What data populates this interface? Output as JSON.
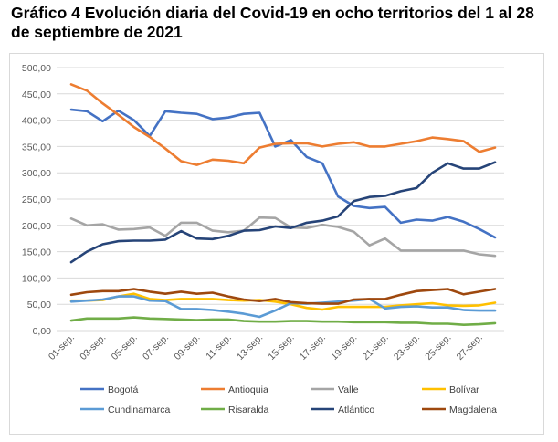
{
  "title": "Gráfico 4 Evolución diaria del Covid-19 en ocho territorios del 1 al 28 de septiembre de 2021",
  "chart_data": {
    "type": "line",
    "title": "Gráfico 4 Evolución diaria del Covid-19 en ocho territorios del 1 al 28 de septiembre de 2021",
    "xlabel": "",
    "ylabel": "",
    "ylim": [
      0,
      500
    ],
    "y_ticks": [
      "0,00",
      "50,00",
      "100,00",
      "150,00",
      "200,00",
      "250,00",
      "300,00",
      "350,00",
      "400,00",
      "450,00",
      "500,00"
    ],
    "x": [
      "01-sep.",
      "02-sep.",
      "03-sep.",
      "04-sep.",
      "05-sep.",
      "06-sep.",
      "07-sep.",
      "08-sep.",
      "09-sep.",
      "10-sep.",
      "11-sep.",
      "12-sep.",
      "13-sep.",
      "14-sep.",
      "15-sep.",
      "16-sep.",
      "17-sep.",
      "18-sep.",
      "19-sep.",
      "20-sep.",
      "21-sep.",
      "22-sep.",
      "23-sep.",
      "24-sep.",
      "25-sep.",
      "26-sep.",
      "27-sep.",
      "28-sep."
    ],
    "x_tick_labels": [
      "01-sep.",
      "03-sep.",
      "05-sep.",
      "07-sep.",
      "09-sep.",
      "11-sep.",
      "13-sep.",
      "15-sep.",
      "17-sep.",
      "19-sep.",
      "21-sep.",
      "23-sep.",
      "25-sep.",
      "27-sep."
    ],
    "grid": true,
    "legend_position": "bottom",
    "series": [
      {
        "name": "Bogotá",
        "color": "#4472c4",
        "values": [
          420,
          417,
          398,
          418,
          400,
          370,
          417,
          414,
          412,
          402,
          405,
          412,
          414,
          350,
          362,
          330,
          318,
          255,
          237,
          233,
          235,
          205,
          211,
          209,
          216,
          207,
          193,
          177
        ]
      },
      {
        "name": "Antioquia",
        "color": "#ed7d31",
        "values": [
          468,
          456,
          432,
          410,
          387,
          368,
          346,
          322,
          315,
          325,
          323,
          318,
          348,
          355,
          356,
          356,
          350,
          355,
          358,
          350,
          350,
          355,
          360,
          367,
          364,
          360,
          340,
          348
        ]
      },
      {
        "name": "Valle",
        "color": "#a5a5a5",
        "values": [
          213,
          200,
          202,
          192,
          193,
          196,
          180,
          205,
          205,
          190,
          187,
          190,
          215,
          214,
          196,
          195,
          201,
          197,
          188,
          162,
          175,
          152,
          152,
          152,
          152,
          152,
          145,
          142
        ]
      },
      {
        "name": "Bolívar",
        "color": "#ffc000",
        "values": [
          57,
          57,
          58,
          65,
          70,
          60,
          58,
          60,
          60,
          60,
          58,
          57,
          58,
          55,
          50,
          43,
          40,
          45,
          45,
          45,
          45,
          48,
          50,
          52,
          48,
          47,
          48,
          53
        ]
      },
      {
        "name": "Cundinamarca",
        "color": "#5b9bd5",
        "values": [
          55,
          57,
          59,
          65,
          65,
          57,
          56,
          41,
          41,
          39,
          36,
          32,
          26,
          38,
          52,
          51,
          53,
          55,
          57,
          60,
          42,
          45,
          46,
          44,
          44,
          39,
          38,
          38
        ]
      },
      {
        "name": "Risaralda",
        "color": "#70ad47",
        "values": [
          19,
          23,
          23,
          23,
          25,
          23,
          22,
          21,
          20,
          21,
          21,
          18,
          17,
          17,
          18,
          18,
          17,
          17,
          16,
          16,
          16,
          15,
          15,
          13,
          13,
          11,
          12,
          14
        ]
      },
      {
        "name": "Atlántico",
        "color": "#264478",
        "values": [
          130,
          150,
          164,
          170,
          171,
          171,
          173,
          189,
          175,
          174,
          180,
          190,
          191,
          198,
          195,
          205,
          209,
          217,
          246,
          254,
          256,
          265,
          271,
          300,
          318,
          308,
          308,
          320
        ]
      },
      {
        "name": "Magdalena",
        "color": "#9e480e",
        "values": [
          68,
          73,
          75,
          75,
          79,
          74,
          70,
          74,
          70,
          72,
          65,
          59,
          56,
          60,
          54,
          52,
          51,
          51,
          59,
          60,
          60,
          68,
          75,
          77,
          79,
          69,
          74,
          79
        ]
      }
    ]
  }
}
